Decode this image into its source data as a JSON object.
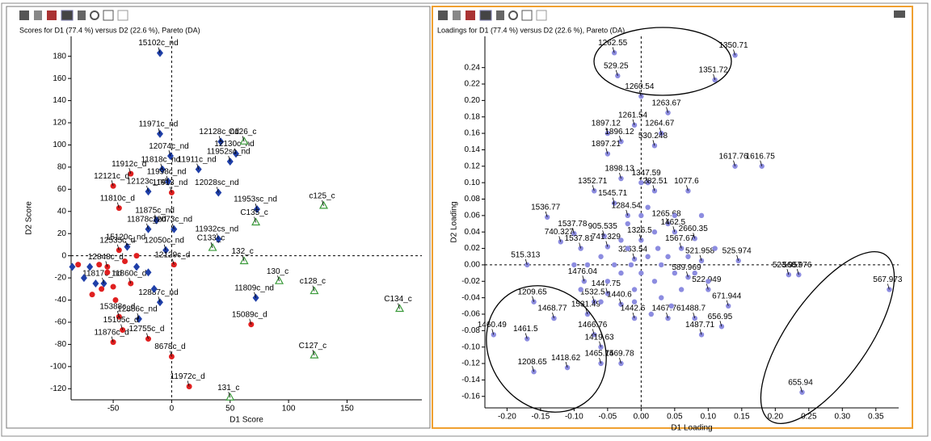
{
  "chart_data": [
    {
      "type": "scatter",
      "title": "Scores for D1 (77.4 %) versus D2 (22.6 %), Pareto (DA)",
      "x_label": "D1 Score",
      "y_label": "D2 Score",
      "xlim": [
        -86,
        214
      ],
      "ylim": [
        -130,
        198
      ],
      "xticks": [
        -50,
        0,
        50,
        100,
        150
      ],
      "yticks": [
        -120,
        -100,
        -80,
        -60,
        -40,
        -20,
        0,
        20,
        40,
        60,
        80,
        100,
        120,
        140,
        160,
        180
      ],
      "series": [
        {
          "color": "#1f3fa8",
          "marker": "diamond",
          "x": [
            -10,
            -10,
            42,
            -1,
            55,
            -8,
            50,
            23,
            -20,
            -3,
            40,
            73,
            -13,
            2,
            -20,
            40,
            -5,
            -38,
            72,
            -10,
            -58,
            -28
          ],
          "values": [
            183,
            110,
            103,
            90,
            92,
            78,
            85,
            78,
            58,
            67,
            57,
            42,
            32,
            24,
            24,
            15,
            5,
            8,
            -38,
            -42,
            -25,
            -57
          ],
          "point_labels": [
            "15102c_nd",
            "11971c_nd",
            "12128c_nd",
            "12074c_nd",
            "12130c_nd",
            "11818c_nd",
            "11952sc_nd",
            "11911c_nd",
            "12123c_nd",
            "11998c_nd",
            "12028sc_nd",
            "11953sc_nd",
            "11875c_nd",
            "12073c_nd",
            "11878c_nd",
            "11932cs_nd",
            "12050c_nd",
            "15120c_nd",
            "11809c_nd",
            "12887c_nd",
            "11817c_nd",
            "12886c_nd"
          ]
        },
        {
          "color": "#e02020",
          "marker": "circle",
          "x": [
            -35,
            -50,
            0,
            -45,
            -45,
            -55,
            2,
            -35,
            68,
            -45,
            -42,
            -20,
            0,
            -50,
            15
          ],
          "values": [
            74,
            63,
            57,
            43,
            5,
            -10,
            -8,
            -25,
            -62,
            -55,
            -67,
            -75,
            -91,
            -78,
            -118
          ],
          "point_labels": [
            "11912c_d",
            "12121c_d",
            "11913_nd",
            "11810c_d",
            "12535c_d",
            "12848c_d",
            "12129c_d",
            "11860c_d",
            "15089c_d",
            "15388c_d",
            "15105c_d",
            "12755c_d",
            "8678c_d",
            "11876c_d",
            "11972c_d"
          ]
        },
        {
          "color": "#3a9a3a",
          "marker": "triangle",
          "x": [
            62,
            130,
            72,
            35,
            62,
            92,
            122,
            195,
            122,
            50
          ],
          "values": [
            103,
            45,
            30,
            7,
            -5,
            -23,
            -32,
            -48,
            -90,
            -128
          ],
          "point_labels": [
            "C126_c",
            "c125_c",
            "C135_c",
            "C133_c",
            "132_c",
            "130_c",
            "c128_c",
            "C134_c",
            "C127_c",
            "131_c"
          ]
        },
        {
          "color": "#e02020",
          "marker": "circle",
          "x": [
            -60,
            -68,
            -55,
            -48,
            -40,
            -30,
            -62,
            -50,
            -80
          ],
          "values": [
            -30,
            -35,
            -15,
            -40,
            -5,
            0,
            -8,
            -28,
            -8
          ]
        },
        {
          "color": "#1f3fa8",
          "marker": "diamond",
          "x": [
            -75,
            -70,
            -65,
            -30,
            -20,
            -15,
            -85
          ],
          "values": [
            -20,
            -10,
            -25,
            -10,
            -15,
            -30,
            -10
          ]
        }
      ]
    },
    {
      "type": "scatter",
      "title": "Loadings for D1 (77.4 %) versus D2 (22.6 %), Pareto (DA)",
      "x_label": "D1 Loading",
      "y_label": "D2 Loading",
      "xlim": [
        -0.233,
        0.384
      ],
      "ylim": [
        -0.174,
        0.278
      ],
      "xticks": [
        {
          "value": -0.2,
          "label": "-0.20"
        },
        -0.15,
        {
          "value": -0.1,
          "label": "-0.10"
        },
        -0.05,
        {
          "value": 0,
          "label": "0.00"
        },
        0.05,
        {
          "value": 0.1,
          "label": "0.10"
        },
        0.15,
        {
          "value": 0.2,
          "label": "0.20"
        },
        0.25,
        {
          "value": 0.3,
          "label": "0.30"
        },
        0.35
      ],
      "yticks": [
        -0.16,
        -0.14,
        -0.12,
        {
          "value": -0.1,
          "label": "-0.10"
        },
        -0.08,
        -0.06,
        -0.04,
        -0.02,
        {
          "value": 0,
          "label": "0.00"
        },
        0.02,
        0.04,
        0.06,
        0.08,
        {
          "value": 0.1,
          "label": "0.10"
        },
        0.12,
        0.14,
        0.16,
        0.18,
        {
          "value": 0.2,
          "label": "0.20"
        },
        0.22,
        0.24
      ],
      "series": [
        {
          "color": "#8c8ce0",
          "marker": "circle",
          "x": [
            -0.04,
            0.14,
            -0.035,
            0.11,
            0.0,
            0.04,
            -0.01,
            -0.05,
            0.03,
            -0.03,
            0.02,
            -0.05,
            0.14,
            0.18,
            -0.03,
            0.01,
            0.02,
            -0.04,
            -0.07,
            0.07,
            -0.02,
            -0.14,
            0.04,
            -0.1,
            -0.055,
            0.0,
            0.08,
            -0.12,
            -0.05,
            0.05,
            -0.09,
            0.06,
            -0.01,
            -0.17,
            0.09,
            0.145,
            0.22,
            0.235,
            0.07,
            -0.085,
            -0.05,
            0.1,
            0.37,
            -0.03,
            0.13,
            -0.16,
            -0.07,
            -0.08,
            0.04,
            0.08,
            -0.01,
            -0.13,
            0.12,
            -0.22,
            -0.07,
            0.09,
            -0.17,
            -0.06,
            -0.16,
            -0.11,
            -0.03,
            -0.06,
            0.24
          ],
          "values": [
            0.258,
            0.255,
            0.23,
            0.225,
            0.205,
            0.185,
            0.17,
            0.16,
            0.16,
            0.15,
            0.145,
            0.135,
            0.12,
            0.12,
            0.105,
            0.1,
            0.09,
            0.075,
            0.09,
            0.09,
            0.06,
            0.058,
            0.05,
            0.038,
            0.035,
            0.03,
            0.032,
            0.028,
            0.022,
            0.04,
            0.02,
            0.02,
            0.007,
            0.0,
            0.005,
            0.005,
            -0.012,
            -0.012,
            -0.015,
            -0.02,
            -0.035,
            -0.03,
            -0.03,
            -0.048,
            -0.05,
            -0.045,
            -0.045,
            -0.06,
            -0.065,
            -0.065,
            -0.065,
            -0.065,
            -0.075,
            -0.085,
            -0.085,
            -0.085,
            -0.09,
            -0.1,
            -0.13,
            -0.125,
            -0.12,
            -0.12,
            -0.155
          ],
          "point_labels": [
            "1262.55",
            "1350.71",
            "529.25",
            "1351.72",
            "1260.54",
            "1263.67",
            "1261.54",
            "1897.12",
            "1264.67",
            "1896.12",
            "530.248",
            "1897.21",
            "1617.76",
            "1616.75",
            "1898.13",
            "1347.59",
            "1282.51",
            "1545.71",
            "1352.71",
            "1077.6",
            "1284.54",
            "1536.77",
            "1265.68",
            "1537.78",
            "905.535",
            "1326.5",
            "2660.35",
            "740.327",
            "741.329",
            "1462.5",
            "1537.81",
            "1567.67",
            "3263.54",
            "515.313",
            "521.958",
            "525.974",
            "523.957",
            "568.976",
            "589.969",
            "1476.04",
            "1447.75",
            "522.949",
            "567.973",
            "1440.6",
            "671.944",
            "1209.65",
            "1532.5",
            "1531.49",
            "1467.76",
            "1488.7",
            "1442.6",
            "1468.77",
            "656.95",
            "1460.49",
            "1466.76",
            "1487.71",
            "1461.5",
            "1419.63",
            "1208.65",
            "1418.62",
            "1469.78",
            "1465.75",
            "655.94"
          ]
        },
        {
          "color": "#8c8ce0",
          "marker": "circle",
          "x": [
            -0.02,
            0.01,
            -0.03,
            0.02,
            0.03,
            -0.01,
            0.05,
            -0.04,
            0.0,
            0.04,
            -0.06,
            0.06,
            0.02,
            -0.02,
            0.0,
            0.01,
            -0.05,
            0.08,
            0.03,
            -0.01,
            0.07,
            -0.08,
            0.05,
            0.09,
            0.1,
            -0.03,
            0.015,
            0.045,
            -0.06,
            0.0,
            -0.1,
            0.11,
            -0.09,
            0.025,
            -0.015
          ],
          "values": [
            0.02,
            0.01,
            -0.01,
            -0.02,
            0.0,
            -0.03,
            -0.01,
            0.0,
            -0.01,
            0.01,
            0.01,
            -0.03,
            0.04,
            0.05,
            0.06,
            0.07,
            -0.02,
            -0.01,
            -0.04,
            -0.045,
            0.01,
            0.0,
            0.06,
            0.06,
            -0.02,
            0.03,
            -0.06,
            -0.05,
            -0.045,
            0.1,
            0.0,
            0.02,
            -0.03,
            0.02,
            0.0
          ]
        }
      ]
    }
  ]
}
